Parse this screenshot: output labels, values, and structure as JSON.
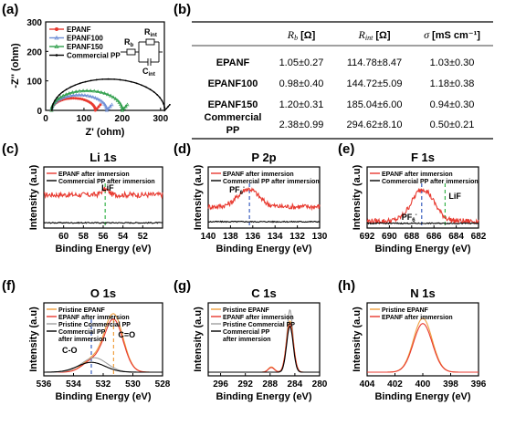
{
  "panels": {
    "a": "(a)",
    "b": "(b)",
    "c": "(c)",
    "d": "(d)",
    "e": "(e)",
    "f": "(f)",
    "g": "(g)",
    "h": "(h)"
  },
  "colors": {
    "red": "#e8392f",
    "blue": "#6f8fd6",
    "green": "#2e9e4a",
    "black": "#000000",
    "orange": "#f0a040",
    "gray": "#a0a0a0",
    "lif": "#35b24a",
    "pf": "#3a5fbf"
  },
  "chart_data": [
    {
      "id": "a",
      "type": "line",
      "xlabel": "Z' (ohm)",
      "ylabel": "-Z'' (ohm)",
      "xlim": [
        0,
        310
      ],
      "ylim": [
        0,
        300
      ],
      "xticks": [
        "0",
        "100",
        "200",
        "300"
      ],
      "yticks": [
        "0",
        "100",
        "200",
        "300"
      ],
      "legend": [
        "EPANF",
        "EPANF100",
        "EPANF150",
        "Commercial PP"
      ],
      "circuit": {
        "rb": "R",
        "rb_sub": "b",
        "rint": "R",
        "rint_sub": "int",
        "cint": "C",
        "cint_sub": "int"
      },
      "series": [
        {
          "name": "EPANF",
          "rb": 1.05,
          "rint": 114.7,
          "color": "red",
          "marker": "circle"
        },
        {
          "name": "EPANF100",
          "rb": 0.98,
          "rint": 144.7,
          "color": "blue",
          "marker": "triangle"
        },
        {
          "name": "EPANF150",
          "rb": 1.2,
          "rint": 185.0,
          "color": "green",
          "marker": "triangle"
        },
        {
          "name": "Commercial PP",
          "rb": 2.38,
          "rint": 294.6,
          "color": "black",
          "marker": "dot"
        }
      ]
    },
    {
      "id": "b",
      "type": "table",
      "columns": [
        {
          "sym": "R",
          "sub": "b",
          "unit": "[Ω]"
        },
        {
          "sym": "R",
          "sub": "int",
          "unit": "[Ω]"
        },
        {
          "sym": "σ",
          "sub": "",
          "unit": "[mS cm⁻¹]"
        }
      ],
      "rows": [
        {
          "name": "EPANF",
          "values": [
            "1.05±0.27",
            "114.78±8.47",
            "1.03±0.30"
          ]
        },
        {
          "name": "EPANF100",
          "values": [
            "0.98±0.40",
            "144.72±5.09",
            "1.18±0.38"
          ]
        },
        {
          "name": "EPANF150",
          "values": [
            "1.20±0.31",
            "185.04±6.00",
            "0.94±0.30"
          ]
        },
        {
          "name": "Commercial PP",
          "values": [
            "2.38±0.99",
            "294.62±8.10",
            "0.50±0.21"
          ]
        }
      ]
    },
    {
      "id": "c",
      "type": "line",
      "title": "Li 1s",
      "xlabel": "Binding Energy (eV)",
      "ylabel": "Intensity (a.u)",
      "xlim": [
        62,
        50
      ],
      "xticks": [
        "60",
        "58",
        "56",
        "54",
        "52"
      ],
      "legend": [
        "EPANF after immersion",
        "Commercial PP after immersion"
      ],
      "annotations": [
        {
          "text": "LiF",
          "x": 55.8,
          "line": "lif"
        }
      ],
      "series": [
        {
          "name": "EPANF after immersion",
          "color": "red",
          "kind": "noise",
          "level": 0.55,
          "peaks": [
            [
              55.8,
              0.1,
              0.5
            ]
          ]
        },
        {
          "name": "Commercial PP after immersion",
          "color": "black",
          "kind": "flat",
          "level": 0.03
        }
      ]
    },
    {
      "id": "d",
      "type": "line",
      "title": "P 2p",
      "xlabel": "Binding Energy (eV)",
      "ylabel": "Intensity (a.u)",
      "xlim": [
        140,
        130
      ],
      "xticks": [
        "140",
        "138",
        "136",
        "134",
        "132",
        "130"
      ],
      "legend": [
        "EPANF after immersion",
        "Commercial PP after immersion"
      ],
      "annotations": [
        {
          "text": "PF",
          "sub": "6",
          "sup": "-",
          "x": 136.3,
          "line": "pf"
        }
      ],
      "series": [
        {
          "name": "EPANF after immersion",
          "color": "red",
          "kind": "noise",
          "level": 0.33,
          "peaks": [
            [
              136.4,
              0.33,
              1.3
            ]
          ]
        },
        {
          "name": "Commercial PP after immersion",
          "color": "black",
          "kind": "flat",
          "level": 0.05
        }
      ]
    },
    {
      "id": "e",
      "type": "line",
      "title": "F 1s",
      "xlabel": "Binding Energy (eV)",
      "ylabel": "Intensity (a.u)",
      "xlim": [
        692,
        682
      ],
      "xticks": [
        "692",
        "690",
        "688",
        "686",
        "684",
        "682"
      ],
      "legend": [
        "EPANF after immersion",
        "Commercial PP after immersion"
      ],
      "annotations": [
        {
          "text": "PF",
          "sub": "6",
          "sup": "-",
          "x": 687.1,
          "line": "pf"
        },
        {
          "text": "LiF",
          "x": 685.0,
          "line": "lif"
        }
      ],
      "series": [
        {
          "name": "EPANF after immersion",
          "color": "red",
          "kind": "noise",
          "level": 0.06,
          "peaks": [
            [
              687.0,
              0.6,
              1.4
            ]
          ]
        },
        {
          "name": "Commercial PP after immersion",
          "color": "black",
          "kind": "flat",
          "level": 0.02
        }
      ]
    },
    {
      "id": "f",
      "type": "line",
      "title": "O 1s",
      "xlabel": "Binding Energy (eV)",
      "ylabel": "Intensity (a.u)",
      "xlim": [
        536,
        528
      ],
      "xticks": [
        "536",
        "534",
        "532",
        "530",
        "528"
      ],
      "legend": [
        "Pristine EPANF",
        "EPANF after immersion",
        "Pristine Commercial PP",
        "Commercial PP after immersion"
      ],
      "annotations": [
        {
          "text": "C-O",
          "x": 532.8,
          "line": "pf"
        },
        {
          "text": "C=O",
          "x": 531.3,
          "line": "orange"
        }
      ],
      "series": [
        {
          "name": "Pristine EPANF",
          "color": "orange",
          "kind": "smooth",
          "level": 0.0,
          "peaks": [
            [
              531.3,
              0.88,
              0.9
            ],
            [
              532.8,
              0.18,
              0.9
            ]
          ]
        },
        {
          "name": "EPANF after immersion",
          "color": "red",
          "kind": "smooth",
          "level": 0.0,
          "peaks": [
            [
              531.3,
              0.8,
              0.9
            ],
            [
              532.8,
              0.16,
              0.9
            ]
          ]
        },
        {
          "name": "Pristine Commercial PP",
          "color": "gray",
          "kind": "smooth",
          "level": 0.0,
          "peaks": [
            [
              532.6,
              0.22,
              1.2
            ]
          ]
        },
        {
          "name": "Commercial PP after immersion",
          "color": "black",
          "kind": "smooth",
          "level": 0.0,
          "peaks": [
            [
              532.8,
              0.15,
              1.3
            ]
          ]
        }
      ]
    },
    {
      "id": "g",
      "type": "line",
      "title": "C 1s",
      "xlabel": "Binding Energy (eV)",
      "ylabel": "Intensity (a.u)",
      "xlim": [
        298,
        280
      ],
      "xticks": [
        "296",
        "292",
        "288",
        "284",
        "280"
      ],
      "legend": [
        "Pristine EPANF",
        "EPANF after immersion",
        "Pristine Commercial PP",
        "Commercial PP after immersion"
      ],
      "series": [
        {
          "name": "Pristine Commercial PP",
          "color": "gray",
          "kind": "smooth",
          "level": 0.0,
          "peaks": [
            [
              284.8,
              0.95,
              0.7
            ]
          ]
        },
        {
          "name": "Pristine EPANF",
          "color": "orange",
          "kind": "smooth",
          "level": 0.0,
          "peaks": [
            [
              284.8,
              0.78,
              0.8
            ],
            [
              287.8,
              0.08,
              0.7
            ]
          ]
        },
        {
          "name": "EPANF after immersion",
          "color": "red",
          "kind": "smooth",
          "level": 0.0,
          "peaks": [
            [
              284.8,
              0.74,
              0.8
            ],
            [
              287.8,
              0.07,
              0.7
            ]
          ]
        },
        {
          "name": "Commercial PP after immersion",
          "color": "black",
          "kind": "smooth",
          "level": 0.0,
          "peaks": [
            [
              284.8,
              0.7,
              0.75
            ]
          ]
        }
      ]
    },
    {
      "id": "h",
      "type": "line",
      "title": "N 1s",
      "xlabel": "Binding Energy (eV)",
      "ylabel": "Intensity (a.u)",
      "xlim": [
        404,
        396
      ],
      "xticks": [
        "404",
        "402",
        "400",
        "398",
        "396"
      ],
      "legend": [
        "Pristine EPANF",
        "EPANF after immersion"
      ],
      "series": [
        {
          "name": "Pristine EPANF",
          "color": "orange",
          "kind": "smooth",
          "level": 0.0,
          "peaks": [
            [
              400.0,
              0.82,
              0.95
            ]
          ]
        },
        {
          "name": "EPANF after immersion",
          "color": "red",
          "kind": "smooth",
          "level": 0.0,
          "peaks": [
            [
              400.0,
              0.74,
              0.95
            ]
          ]
        }
      ]
    }
  ]
}
